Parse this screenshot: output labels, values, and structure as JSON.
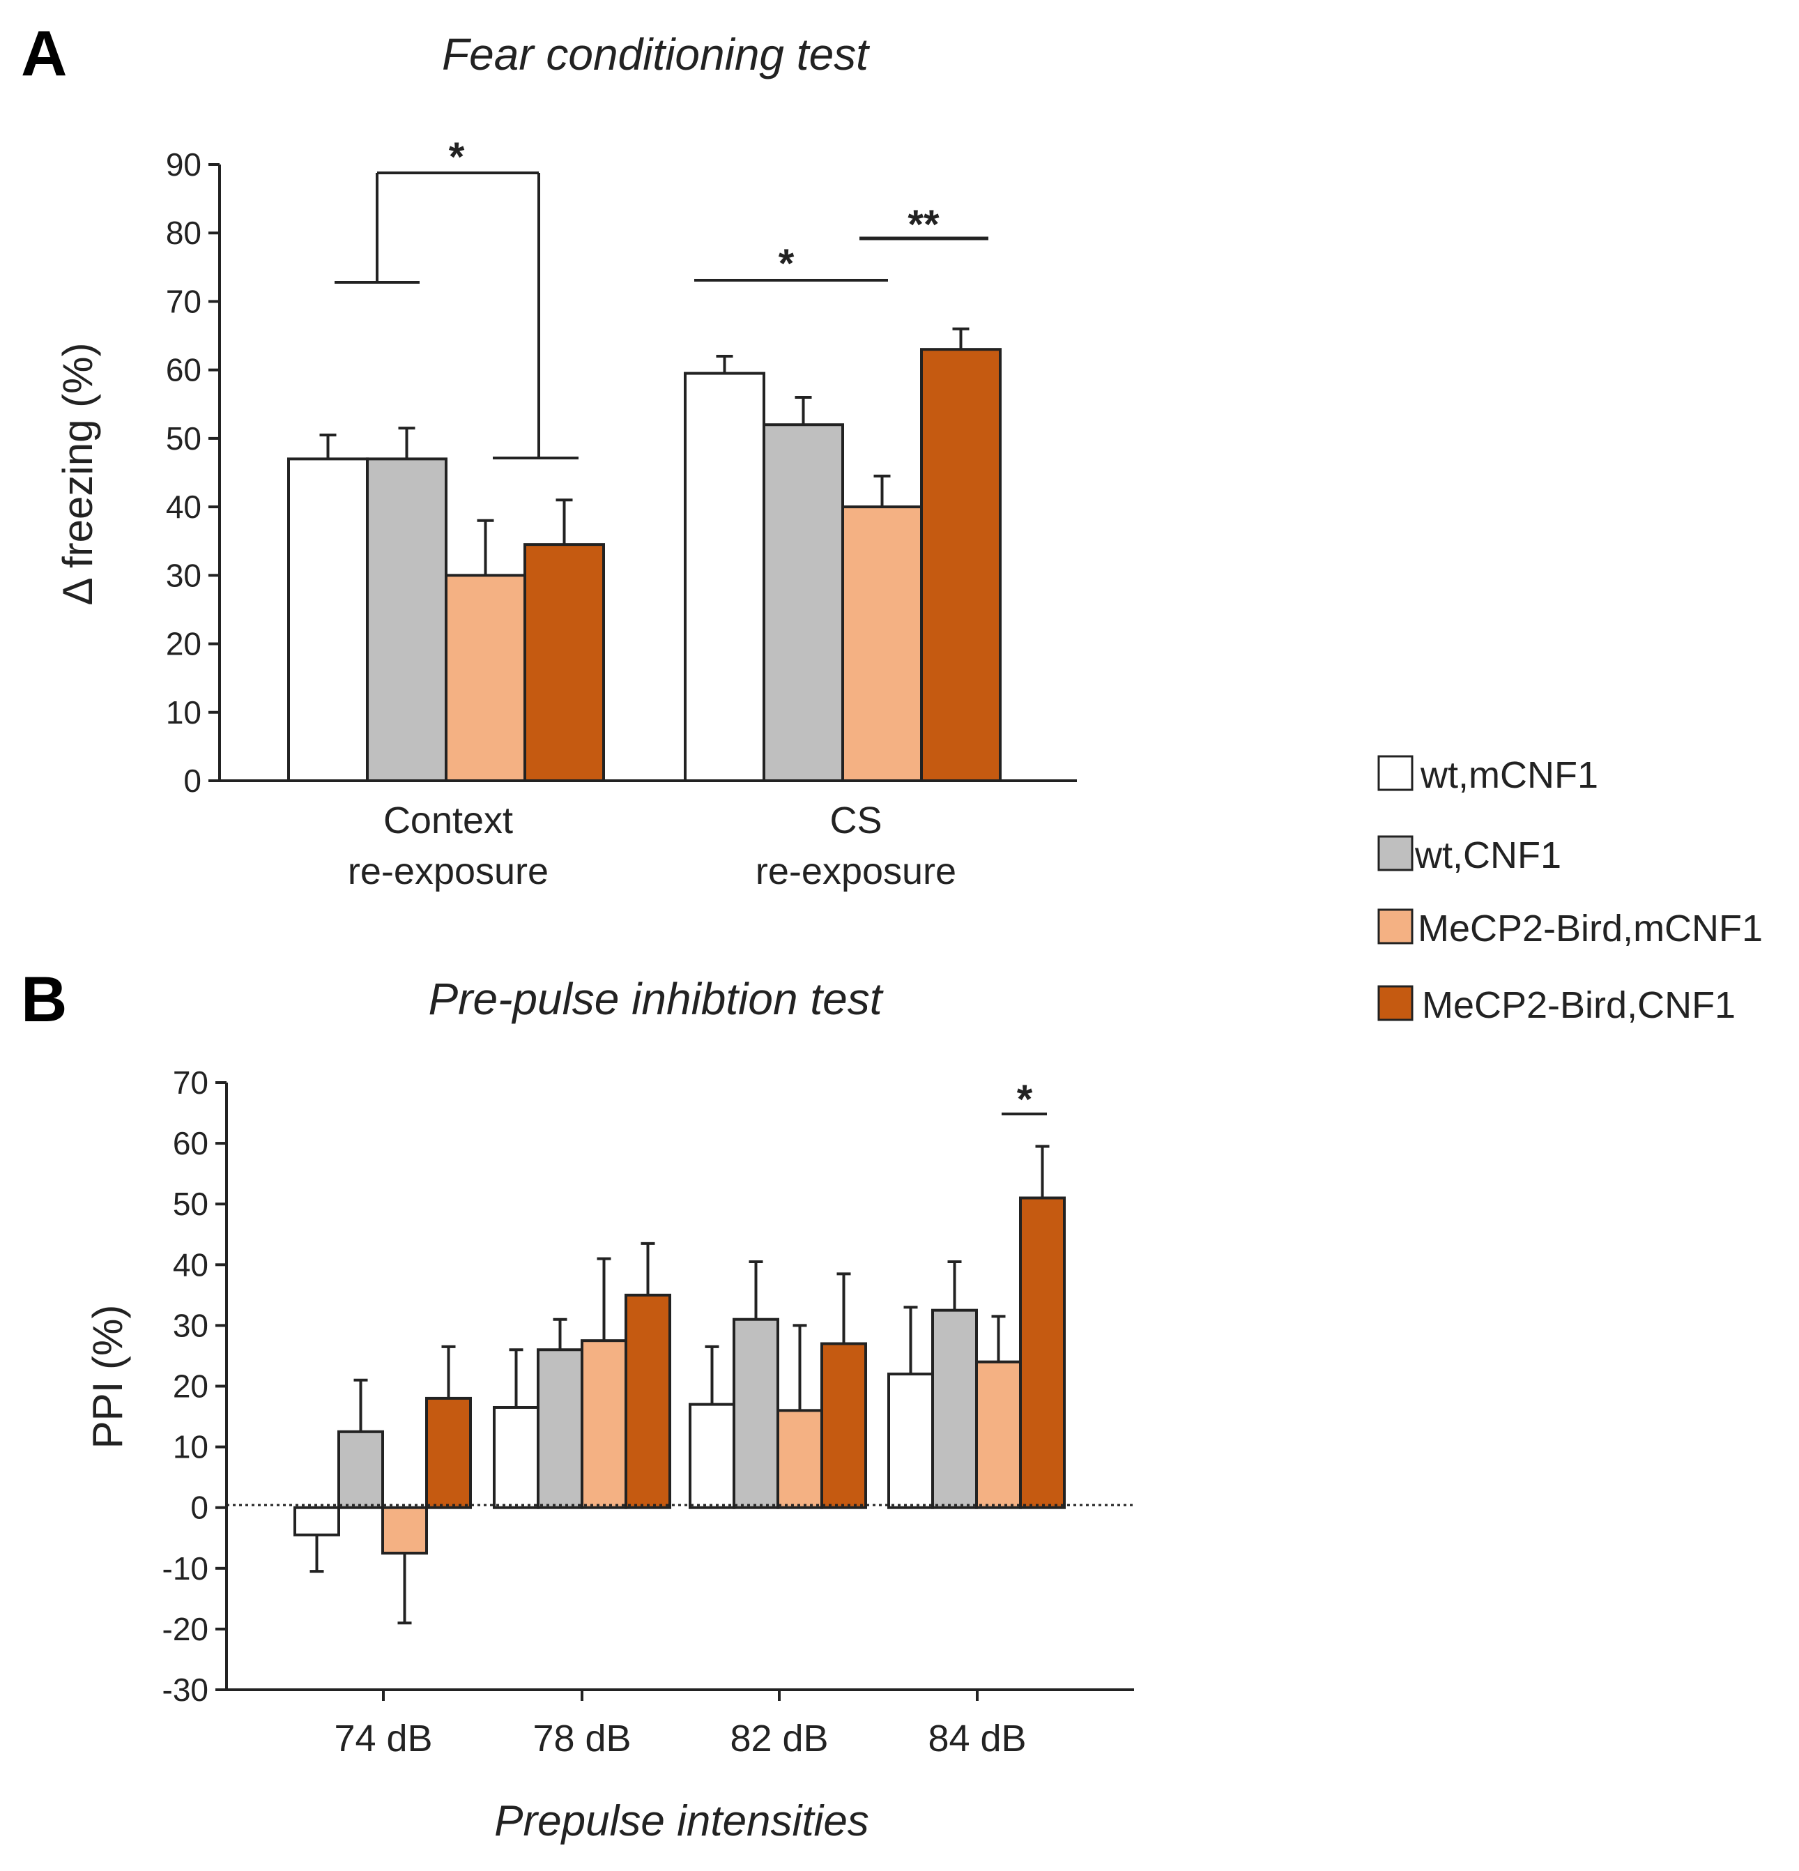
{
  "legend": [
    {
      "label": "wt,mCNF1",
      "color": "#ffffff"
    },
    {
      "label": "wt,CNF1",
      "color": "#bfbfbf"
    },
    {
      "label": "MeCP2-Bird,mCNF1",
      "color": "#f4b183"
    },
    {
      "label": "MeCP2-Bird,CNF1",
      "color": "#c55a11"
    }
  ],
  "chart_data": [
    {
      "panel": "A",
      "type": "bar",
      "title": "Fear conditioning test",
      "xlabel": "",
      "ylabel": "Δ freezing (%)",
      "ylim": [
        0,
        90
      ],
      "yticks": [
        "0",
        "10",
        "20",
        "30",
        "40",
        "50",
        "60",
        "70",
        "80",
        "90"
      ],
      "categories": [
        {
          "line1": "Context",
          "line2": "re-exposure"
        },
        {
          "line1": "CS",
          "line2": "re-exposure"
        }
      ],
      "series": [
        {
          "name": "wt,mCNF1",
          "color": "#ffffff",
          "values": [
            47,
            59.5
          ],
          "errors": [
            3.5,
            2.5
          ]
        },
        {
          "name": "wt,CNF1",
          "color": "#bfbfbf",
          "values": [
            47,
            52
          ],
          "errors": [
            4.5,
            4
          ]
        },
        {
          "name": "MeCP2-Bird,mCNF1",
          "color": "#f4b183",
          "values": [
            30,
            40
          ],
          "errors": [
            8,
            4.5
          ]
        },
        {
          "name": "MeCP2-Bird,CNF1",
          "color": "#c55a11",
          "values": [
            34.5,
            63
          ],
          "errors": [
            6.5,
            3
          ]
        }
      ],
      "annotations": [
        "*",
        "*",
        "**"
      ]
    },
    {
      "panel": "B",
      "type": "bar",
      "title": "Pre-pulse inhibtion test",
      "xlabel": "Prepulse intensities",
      "ylabel": "PPI (%)",
      "ylim": [
        -30,
        70
      ],
      "yticks": [
        "-30",
        "-20",
        "-10",
        "0",
        "10",
        "20",
        "30",
        "40",
        "50",
        "60",
        "70"
      ],
      "categories": [
        "74 dB",
        "78 dB",
        "82 dB",
        "84 dB"
      ],
      "series": [
        {
          "name": "wt,mCNF1",
          "color": "#ffffff",
          "values": [
            -4.5,
            16.5,
            17,
            22
          ],
          "errors": [
            6,
            9.5,
            9.5,
            11
          ]
        },
        {
          "name": "wt,CNF1",
          "color": "#bfbfbf",
          "values": [
            12.5,
            26,
            31,
            32.5
          ],
          "errors": [
            8.5,
            5,
            9.5,
            8
          ]
        },
        {
          "name": "MeCP2-Bird,mCNF1",
          "color": "#f4b183",
          "values": [
            -7.5,
            27.5,
            16,
            24
          ],
          "errors": [
            11.5,
            13.5,
            14,
            7.5
          ]
        },
        {
          "name": "MeCP2-Bird,CNF1",
          "color": "#c55a11",
          "values": [
            18,
            35,
            27,
            51
          ],
          "errors": [
            8.5,
            8.5,
            11.5,
            8.5
          ]
        }
      ],
      "annotations": [
        "*"
      ]
    }
  ]
}
